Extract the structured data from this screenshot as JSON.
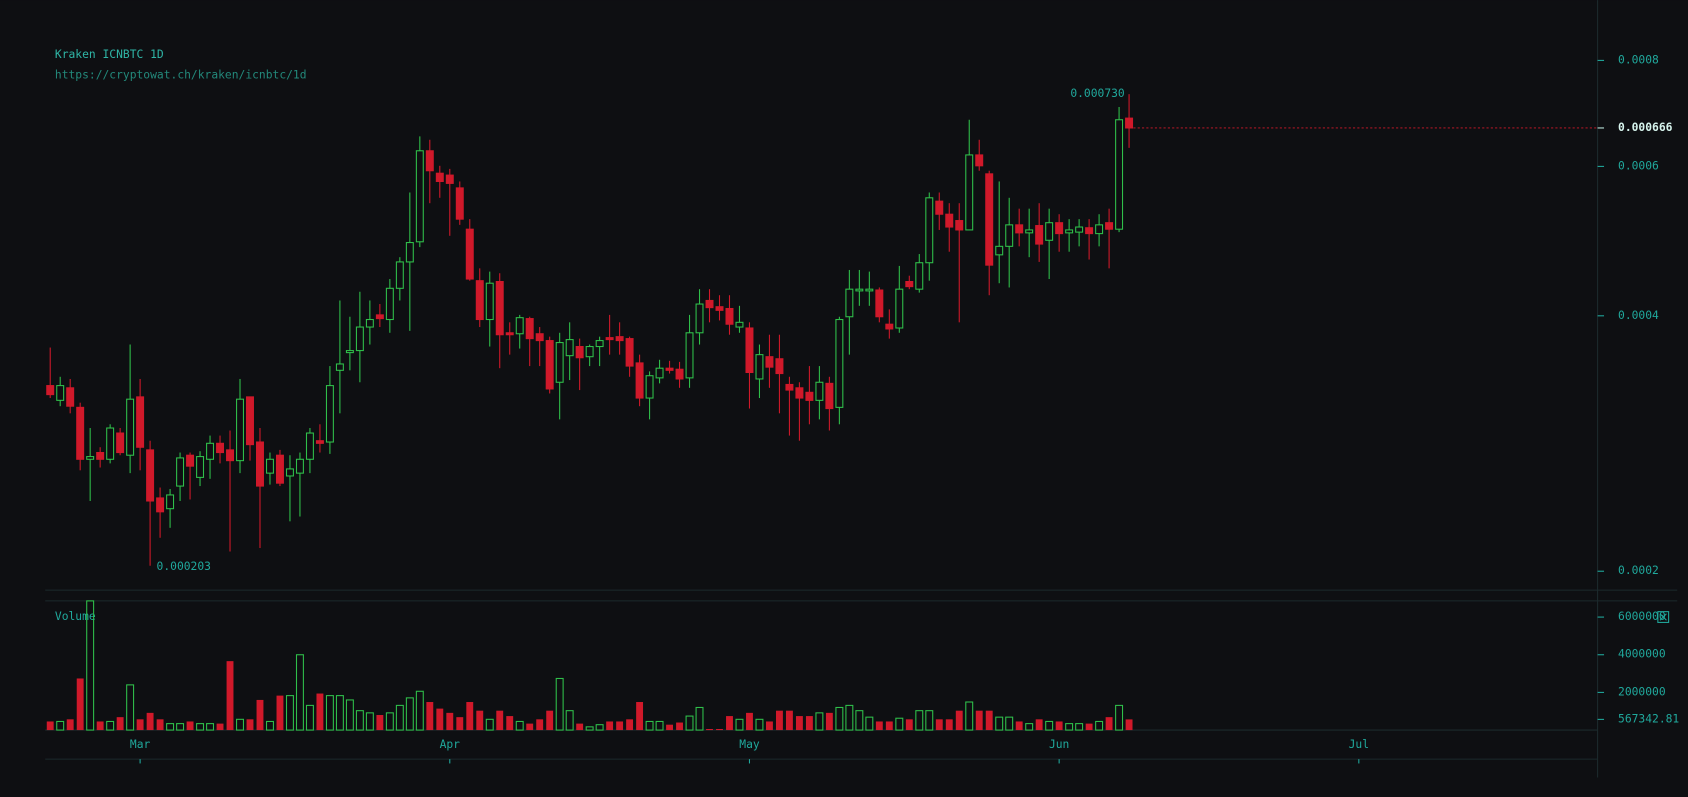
{
  "chart_data": {
    "type": "candlestick",
    "title": "Kraken ICNBTC 1D",
    "subtitle": "https://cryptowat.ch/kraken/icnbtc/1d",
    "volume_title": "Volume",
    "up_color": "#2fbf4a",
    "down_color": "#d0192a",
    "log_scale": true,
    "ylim": [
      0.00019,
      0.000863
    ],
    "yticks": [
      0.0002,
      0.0004,
      0.0006,
      0.0008
    ],
    "xlim": [
      -0.5,
      154.9
    ],
    "xticks": [
      {
        "value": 9,
        "label": "Mar"
      },
      {
        "value": 40,
        "label": "Apr"
      },
      {
        "value": 70,
        "label": "May"
      },
      {
        "value": 101,
        "label": "Jun"
      },
      {
        "value": 131,
        "label": "Jul"
      }
    ],
    "max_label": {
      "value": 0.00073,
      "label": "0.000730"
    },
    "min_label": 0.000203,
    "last_price": 0.000666,
    "volume_ylim": [
      0,
      6860000
    ],
    "volume_yticks": [
      2000000,
      4000000,
      6000000
    ],
    "last_volume": 567342.81,
    "open": [
      0.000331,
      0.000318,
      0.000329,
      0.000312,
      0.000271,
      0.000276,
      0.000271,
      0.000291,
      0.000274,
      0.000321,
      0.000278,
      0.000244,
      0.000237,
      0.000252,
      0.000274,
      0.000258,
      0.000271,
      0.000283,
      0.000278,
      0.00027,
      0.000321,
      0.000284,
      0.000261,
      0.000274,
      0.000259,
      0.000261,
      0.000271,
      0.000285,
      0.000284,
      0.000345,
      0.000362,
      0.000364,
      0.000388,
      0.000401,
      0.000396,
      0.000431,
      0.000463,
      0.000489,
      0.000626,
      0.000589,
      0.000586,
      0.000566,
      0.000506,
      0.00044,
      0.000396,
      0.000439,
      0.000382,
      0.000381,
      0.000397,
      0.000381,
      0.000374,
      0.000334,
      0.000359,
      0.000368,
      0.000358,
      0.000368,
      0.000377,
      0.000378,
      0.000376,
      0.000352,
      0.00032,
      0.000338,
      0.000347,
      0.000346,
      0.000338,
      0.000382,
      0.000417,
      0.00041,
      0.000408,
      0.000388,
      0.000387,
      0.000337,
      0.000358,
      0.000356,
      0.000332,
      0.000329,
      0.000325,
      0.000318,
      0.000333,
      0.000312,
      0.000399,
      0.000428,
      0.000428,
      0.000429,
      0.000391,
      0.000387,
      0.000439,
      0.00043,
      0.000462,
      0.000546,
      0.000527,
      0.000518,
      0.000505,
      0.000619,
      0.000588,
      0.000472,
      0.000483,
      0.000512,
      0.000501,
      0.000511,
      0.000491,
      0.000515,
      0.000501,
      0.000502,
      0.000508,
      0.0005,
      0.000515,
      0.000506,
      0.000684
    ],
    "high": [
      0.000367,
      0.000339,
      0.000337,
      0.000316,
      0.000295,
      0.00028,
      0.000298,
      0.000295,
      0.00037,
      0.000337,
      0.000285,
      0.000251,
      0.00025,
      0.000276,
      0.000276,
      0.000277,
      0.000289,
      0.000289,
      0.000293,
      0.000337,
      0.000321,
      0.000295,
      0.000276,
      0.000278,
      0.000274,
      0.000276,
      0.000295,
      0.000298,
      0.000349,
      0.000417,
      0.000399,
      0.000427,
      0.000417,
      0.000413,
      0.000442,
      0.000469,
      0.000559,
      0.000651,
      0.000645,
      0.000601,
      0.000596,
      0.000576,
      0.00052,
      0.000455,
      0.000451,
      0.000449,
      0.000393,
      0.000401,
      0.000399,
      0.000388,
      0.000378,
      0.000382,
      0.000393,
      0.000376,
      0.00037,
      0.000378,
      0.000401,
      0.000393,
      0.000378,
      0.00036,
      0.000344,
      0.000355,
      0.000354,
      0.000353,
      0.000401,
      0.00043,
      0.00043,
      0.000423,
      0.000423,
      0.000411,
      0.000393,
      0.00037,
      0.00038,
      0.00038,
      0.000339,
      0.000334,
      0.000349,
      0.000349,
      0.000339,
      0.000399,
      0.000453,
      0.000453,
      0.000451,
      0.000432,
      0.000407,
      0.000458,
      0.000446,
      0.000473,
      0.000559,
      0.000559,
      0.000543,
      0.000543,
      0.000681,
      0.000645,
      0.000593,
      0.000576,
      0.000551,
      0.000535,
      0.000535,
      0.000543,
      0.000535,
      0.000527,
      0.00052,
      0.00052,
      0.00052,
      0.000527,
      0.000535,
      0.000705,
      0.00073
    ],
    "low": [
      0.00032,
      0.000313,
      0.000307,
      0.000263,
      0.000242,
      0.000265,
      0.000268,
      0.000274,
      0.000261,
      0.000263,
      0.000203,
      0.000219,
      0.000225,
      0.000242,
      0.000243,
      0.000252,
      0.000257,
      0.000268,
      0.000211,
      0.000261,
      0.00027,
      0.000213,
      0.000253,
      0.000252,
      0.000229,
      0.000232,
      0.000261,
      0.000276,
      0.000275,
      0.000307,
      0.000345,
      0.000334,
      0.00037,
      0.000388,
      0.000382,
      0.000417,
      0.000384,
      0.000482,
      0.000543,
      0.000551,
      0.000497,
      0.000512,
      0.00044,
      0.000388,
      0.000368,
      0.000347,
      0.00036,
      0.000366,
      0.000349,
      0.000349,
      0.000324,
      0.000302,
      0.000336,
      0.000327,
      0.000349,
      0.000349,
      0.00036,
      0.00036,
      0.000339,
      0.000313,
      0.000302,
      0.000333,
      0.000342,
      0.000329,
      0.000329,
      0.00037,
      0.000393,
      0.000395,
      0.00038,
      0.000382,
      0.000311,
      0.00032,
      0.000329,
      0.000307,
      0.000289,
      0.000285,
      0.000298,
      0.000302,
      0.000293,
      0.000298,
      0.00036,
      0.000411,
      0.000411,
      0.000393,
      0.000376,
      0.000382,
      0.00043,
      0.000426,
      0.00044,
      0.000505,
      0.000476,
      0.000393,
      0.000505,
      0.000593,
      0.000423,
      0.000437,
      0.000432,
      0.000483,
      0.000469,
      0.000463,
      0.000442,
      0.000476,
      0.000476,
      0.000483,
      0.000466,
      0.000483,
      0.000455,
      0.000502,
      0.000631
    ],
    "close": [
      0.000323,
      0.000331,
      0.000313,
      0.000271,
      0.000273,
      0.000271,
      0.000295,
      0.000276,
      0.000319,
      0.00028,
      0.000242,
      0.000235,
      0.000246,
      0.000272,
      0.000266,
      0.000273,
      0.000283,
      0.000276,
      0.00027,
      0.000319,
      0.000282,
      0.000252,
      0.000271,
      0.000254,
      0.000264,
      0.000271,
      0.000291,
      0.000283,
      0.000331,
      0.000351,
      0.000364,
      0.000388,
      0.000396,
      0.000397,
      0.000431,
      0.000463,
      0.000488,
      0.000626,
      0.000593,
      0.000576,
      0.000573,
      0.00052,
      0.000442,
      0.000396,
      0.000437,
      0.00038,
      0.00038,
      0.000398,
      0.000376,
      0.000374,
      0.000328,
      0.000372,
      0.000375,
      0.000357,
      0.000368,
      0.000374,
      0.000375,
      0.000374,
      0.000349,
      0.00032,
      0.00034,
      0.000347,
      0.000345,
      0.000337,
      0.000382,
      0.000413,
      0.000409,
      0.000406,
      0.000391,
      0.000393,
      0.000343,
      0.00036,
      0.000348,
      0.000342,
      0.000327,
      0.00032,
      0.000318,
      0.000334,
      0.000311,
      0.000396,
      0.00043,
      0.00043,
      0.00043,
      0.000399,
      0.000386,
      0.00043,
      0.000433,
      0.000462,
      0.000551,
      0.000527,
      0.000509,
      0.000505,
      0.000619,
      0.000601,
      0.000459,
      0.000483,
      0.000512,
      0.000501,
      0.000505,
      0.000486,
      0.000515,
      0.0005,
      0.000505,
      0.000509,
      0.0005,
      0.000512,
      0.000506,
      0.000681,
      0.000666
    ],
    "volume": [
      457000,
      457000,
      571000,
      2740000,
      6860000,
      457000,
      457000,
      686000,
      2400000,
      571000,
      914000,
      571000,
      343000,
      343000,
      457000,
      343000,
      343000,
      343000,
      3660000,
      571000,
      571000,
      1600000,
      457000,
      1830000,
      1830000,
      4000000,
      1310000,
      1940000,
      1830000,
      1830000,
      1600000,
      1030000,
      914000,
      800000,
      914000,
      1310000,
      1710000,
      2060000,
      1490000,
      1140000,
      914000,
      686000,
      1490000,
      1030000,
      571000,
      1030000,
      743000,
      457000,
      343000,
      571000,
      1030000,
      2740000,
      1030000,
      343000,
      171000,
      286000,
      457000,
      457000,
      571000,
      1490000,
      457000,
      457000,
      286000,
      400000,
      743000,
      1200000,
      57000,
      57000,
      743000,
      571000,
      914000,
      571000,
      457000,
      1030000,
      1030000,
      743000,
      743000,
      914000,
      914000,
      1200000,
      1310000,
      1030000,
      686000,
      457000,
      457000,
      629000,
      571000,
      1030000,
      1030000,
      571000,
      571000,
      1030000,
      1490000,
      1030000,
      1030000,
      686000,
      686000,
      457000,
      343000,
      571000,
      457000,
      457000,
      343000,
      343000,
      343000,
      457000,
      686000,
      1310000,
      567342.81
    ]
  }
}
